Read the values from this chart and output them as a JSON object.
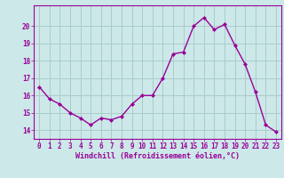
{
  "x": [
    0,
    1,
    2,
    3,
    4,
    5,
    6,
    7,
    8,
    9,
    10,
    11,
    12,
    13,
    14,
    15,
    16,
    17,
    18,
    19,
    20,
    21,
    22,
    23
  ],
  "y": [
    16.5,
    15.8,
    15.5,
    15.0,
    14.7,
    14.3,
    14.7,
    14.6,
    14.8,
    15.5,
    16.0,
    16.0,
    17.0,
    18.4,
    18.5,
    20.0,
    20.5,
    19.8,
    20.1,
    18.9,
    17.8,
    16.2,
    14.3,
    13.9
  ],
  "line_color": "#990099",
  "marker": "D",
  "marker_size": 2.0,
  "line_width": 1.0,
  "bg_color": "#cce8e8",
  "grid_color": "#aacccc",
  "xlabel": "Windchill (Refroidissement éolien,°C)",
  "xlabel_fontsize": 6.0,
  "tick_fontsize": 5.5,
  "ylim": [
    13.5,
    21.2
  ],
  "xlim": [
    -0.5,
    23.5
  ],
  "yticks": [
    14,
    15,
    16,
    17,
    18,
    19,
    20
  ],
  "xticks": [
    0,
    1,
    2,
    3,
    4,
    5,
    6,
    7,
    8,
    9,
    10,
    11,
    12,
    13,
    14,
    15,
    16,
    17,
    18,
    19,
    20,
    21,
    22,
    23
  ],
  "spine_color": "#990099",
  "bottom_bar_color": "#9900aa"
}
